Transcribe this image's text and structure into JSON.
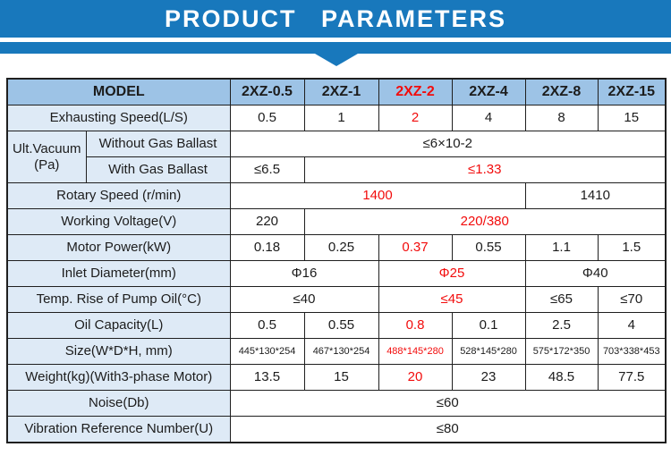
{
  "banner": {
    "title": "PRODUCT PARAMETERS"
  },
  "colors": {
    "banner_blue": "#1878BC",
    "header_bg": "#9DC3E6",
    "label_bg": "#DEEAF6",
    "highlight_red": "#F20C0C"
  },
  "table": {
    "rows": [
      {
        "cells": [
          {
            "t": "MODEL",
            "span": 2,
            "label": true,
            "header": true,
            "name": "model-header"
          },
          {
            "t": "2XZ-0.5",
            "header": true,
            "name": "column-header"
          },
          {
            "t": "2XZ-1",
            "header": true,
            "name": "column-header"
          },
          {
            "t": "2XZ-2",
            "header": true,
            "red": true,
            "name": "column-header"
          },
          {
            "t": "2XZ-4",
            "header": true,
            "name": "column-header"
          },
          {
            "t": "2XZ-8",
            "header": true,
            "name": "column-header"
          },
          {
            "t": "2XZ-15",
            "header": true,
            "name": "column-header"
          }
        ]
      },
      {
        "cells": [
          {
            "t": "Exhausting Speed(L/S)",
            "span": 2,
            "label": true,
            "name": "row-label"
          },
          {
            "t": "0.5"
          },
          {
            "t": "1"
          },
          {
            "t": "2",
            "red": true
          },
          {
            "t": "4"
          },
          {
            "t": "8"
          },
          {
            "t": "15"
          }
        ]
      },
      {
        "cells": [
          {
            "t": "Ult.Vacuum (Pa)",
            "rowspan": 2,
            "label": true,
            "name": "row-label"
          },
          {
            "t": "Without Gas Ballast",
            "label": true,
            "name": "row-sublabel"
          },
          {
            "t": "≤6×10-2",
            "span": 6
          }
        ]
      },
      {
        "cells": [
          {
            "t": "With Gas Ballast",
            "label": true,
            "name": "row-sublabel"
          },
          {
            "t": "≤6.5"
          },
          {
            "t": "≤1.33",
            "span": 5,
            "red": true
          }
        ]
      },
      {
        "cells": [
          {
            "t": "Rotary Speed (r/min)",
            "span": 2,
            "label": true,
            "name": "row-label"
          },
          {
            "t": "1400",
            "span": 4,
            "red": true
          },
          {
            "t": "1410",
            "span": 2
          }
        ]
      },
      {
        "cells": [
          {
            "t": "Working Voltage(V)",
            "span": 2,
            "label": true,
            "name": "row-label"
          },
          {
            "t": "220"
          },
          {
            "t": "220/380",
            "span": 5,
            "red": true
          }
        ]
      },
      {
        "cells": [
          {
            "t": "Motor Power(kW)",
            "span": 2,
            "label": true,
            "name": "row-label"
          },
          {
            "t": "0.18"
          },
          {
            "t": "0.25"
          },
          {
            "t": "0.37",
            "red": true
          },
          {
            "t": "0.55"
          },
          {
            "t": "1.1"
          },
          {
            "t": "1.5"
          }
        ]
      },
      {
        "cells": [
          {
            "t": "Inlet Diameter(mm)",
            "span": 2,
            "label": true,
            "name": "row-label"
          },
          {
            "t": "Φ16",
            "span": 2
          },
          {
            "t": "Φ25",
            "span": 2,
            "red": true
          },
          {
            "t": "Φ40",
            "span": 2
          }
        ]
      },
      {
        "cells": [
          {
            "t": "Temp. Rise of Pump Oil(°C)",
            "span": 2,
            "label": true,
            "name": "row-label"
          },
          {
            "t": "≤40",
            "span": 2
          },
          {
            "t": "≤45",
            "span": 2,
            "red": true
          },
          {
            "t": "≤65"
          },
          {
            "t": "≤70"
          }
        ]
      },
      {
        "cells": [
          {
            "t": "Oil Capacity(L)",
            "span": 2,
            "label": true,
            "name": "row-label"
          },
          {
            "t": "0.5"
          },
          {
            "t": "0.55"
          },
          {
            "t": "0.8",
            "red": true
          },
          {
            "t": "0.1"
          },
          {
            "t": "2.5"
          },
          {
            "t": "4"
          }
        ]
      },
      {
        "cells": [
          {
            "t": "Size(W*D*H, mm)",
            "span": 2,
            "label": true,
            "name": "row-label"
          },
          {
            "t": "445*130*254",
            "small": true
          },
          {
            "t": "467*130*254",
            "small": true
          },
          {
            "t": "488*145*280",
            "small": true,
            "red": true
          },
          {
            "t": "528*145*280",
            "small": true
          },
          {
            "t": "575*172*350",
            "small": true
          },
          {
            "t": "703*338*453",
            "small": true
          }
        ]
      },
      {
        "cells": [
          {
            "t": "Weight(kg)(With3-phase Motor)",
            "span": 2,
            "label": true,
            "name": "row-label"
          },
          {
            "t": "13.5"
          },
          {
            "t": "15"
          },
          {
            "t": "20",
            "red": true
          },
          {
            "t": "23"
          },
          {
            "t": "48.5"
          },
          {
            "t": "77.5"
          }
        ]
      },
      {
        "cells": [
          {
            "t": "Noise(Db)",
            "span": 2,
            "label": true,
            "name": "row-label"
          },
          {
            "t": "≤60",
            "span": 6
          }
        ]
      },
      {
        "cells": [
          {
            "t": "Vibration Reference Number(U)",
            "span": 2,
            "label": true,
            "name": "row-label"
          },
          {
            "t": "≤80",
            "span": 6
          }
        ]
      }
    ]
  }
}
